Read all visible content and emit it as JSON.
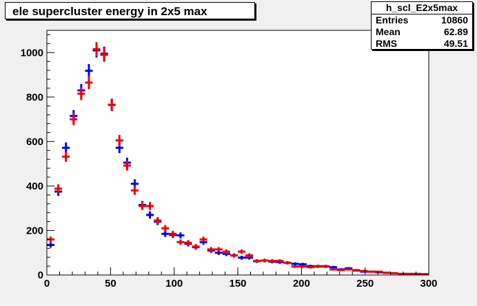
{
  "title": "ele supercluster energy in 2x5 max",
  "stats": {
    "name": "h_scl_E2x5max",
    "rows": [
      {
        "label": "Entries",
        "value": "10860"
      },
      {
        "label": "Mean",
        "value": "62.89"
      },
      {
        "label": "RMS",
        "value": "49.51"
      }
    ]
  },
  "colors": {
    "blue": "#0000ee",
    "red": "#ee0000",
    "frame_bg": "#f0f0f0",
    "plot_bg": "#ffffff"
  },
  "chart_data": {
    "type": "scatter",
    "title": "ele supercluster energy in 2x5 max",
    "xlabel": "",
    "ylabel": "",
    "xlim": [
      0,
      300
    ],
    "ylim": [
      0,
      1100
    ],
    "xticks": [
      0,
      50,
      100,
      150,
      200,
      250,
      300
    ],
    "yticks": [
      0,
      200,
      400,
      600,
      800,
      1000
    ],
    "bin_width": 6,
    "series": [
      {
        "color": "#0000ee",
        "x": [
          3,
          9,
          15,
          21,
          27,
          33,
          39,
          45,
          51,
          57,
          63,
          69,
          75,
          81,
          87,
          93,
          99,
          105,
          111,
          117,
          123,
          129,
          135,
          141,
          147,
          153,
          159,
          165,
          171,
          177,
          183,
          189,
          195,
          201,
          207,
          213,
          219,
          225,
          231,
          237,
          243,
          249,
          255,
          261,
          267,
          273,
          279,
          285,
          291,
          297
        ],
        "y": [
          135,
          375,
          572,
          715,
          830,
          918,
          1010,
          995,
          765,
          572,
          505,
          410,
          315,
          270,
          240,
          185,
          180,
          178,
          140,
          125,
          148,
          110,
          100,
          95,
          88,
          78,
          78,
          62,
          65,
          60,
          58,
          55,
          50,
          48,
          40,
          38,
          38,
          35,
          25,
          30,
          20,
          15,
          15,
          12,
          10,
          8,
          5,
          5,
          5,
          4
        ]
      },
      {
        "color": "#ee0000",
        "x": [
          3,
          9,
          15,
          21,
          27,
          33,
          39,
          45,
          51,
          57,
          63,
          69,
          75,
          81,
          87,
          93,
          99,
          105,
          111,
          117,
          123,
          129,
          135,
          141,
          147,
          153,
          159,
          165,
          171,
          177,
          183,
          189,
          195,
          201,
          207,
          213,
          219,
          225,
          231,
          237,
          243,
          249,
          255,
          261,
          267,
          273,
          279,
          285,
          291,
          297
        ],
        "y": [
          160,
          388,
          532,
          700,
          815,
          865,
          1015,
          990,
          765,
          605,
          492,
          380,
          310,
          310,
          245,
          210,
          185,
          148,
          145,
          128,
          160,
          115,
          115,
          105,
          88,
          105,
          88,
          63,
          65,
          63,
          63,
          55,
          38,
          38,
          35,
          40,
          40,
          25,
          22,
          25,
          22,
          18,
          15,
          15,
          10,
          8,
          5,
          5,
          5,
          3
        ]
      }
    ]
  }
}
